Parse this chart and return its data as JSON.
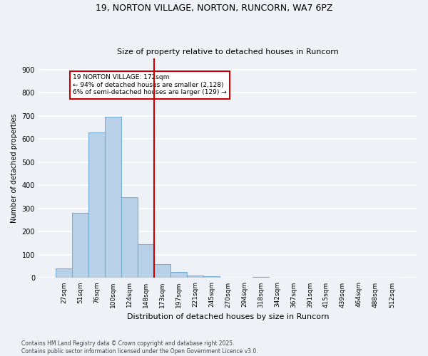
{
  "title": "19, NORTON VILLAGE, NORTON, RUNCORN, WA7 6PZ",
  "subtitle": "Size of property relative to detached houses in Runcorn",
  "xlabel": "Distribution of detached houses by size in Runcorn",
  "ylabel": "Number of detached properties",
  "bar_values": [
    40,
    280,
    630,
    695,
    350,
    145,
    60,
    25,
    12,
    8,
    0,
    0,
    3,
    0,
    0,
    0,
    0,
    0,
    0,
    0,
    0
  ],
  "bar_labels": [
    "27sqm",
    "51sqm",
    "76sqm",
    "100sqm",
    "124sqm",
    "148sqm",
    "173sqm",
    "197sqm",
    "221sqm",
    "245sqm",
    "270sqm",
    "294sqm",
    "318sqm",
    "342sqm",
    "367sqm",
    "391sqm",
    "415sqm",
    "439sqm",
    "464sqm",
    "488sqm",
    "512sqm"
  ],
  "bar_color": "#b8d0e8",
  "bar_edge_color": "#7aafd4",
  "vline_x": 5.5,
  "vline_color": "#cc0000",
  "annotation_text": "19 NORTON VILLAGE: 172sqm\n← 94% of detached houses are smaller (2,128)\n6% of semi-detached houses are larger (129) →",
  "annotation_box_color": "#cc0000",
  "annotation_text_color": "#000000",
  "ylim": [
    0,
    950
  ],
  "yticks": [
    0,
    100,
    200,
    300,
    400,
    500,
    600,
    700,
    800,
    900
  ],
  "footer": "Contains HM Land Registry data © Crown copyright and database right 2025.\nContains public sector information licensed under the Open Government Licence v3.0.",
  "background_color": "#eef2f7",
  "grid_color": "#ffffff"
}
